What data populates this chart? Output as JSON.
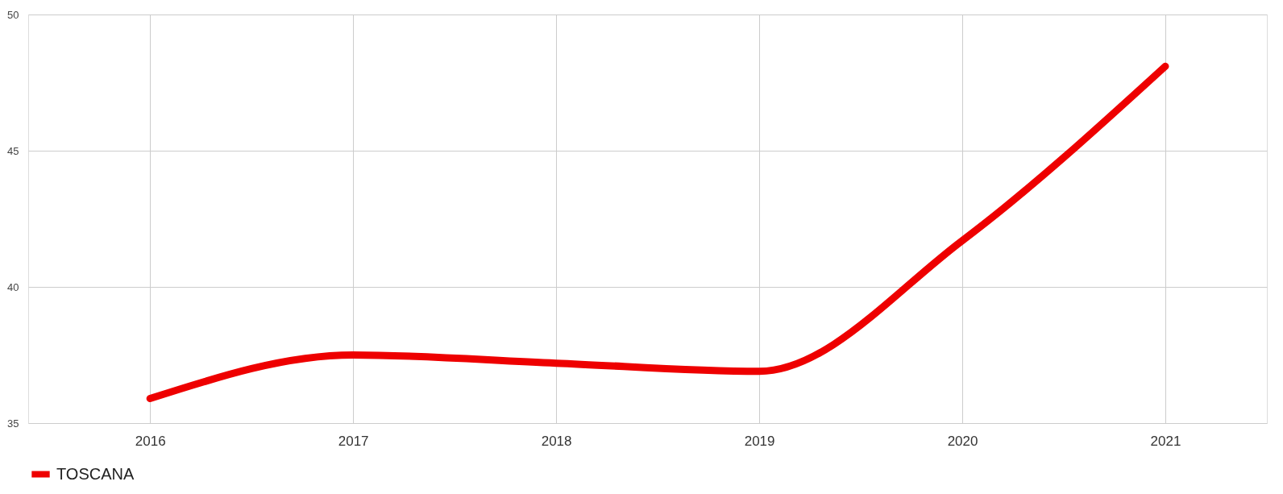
{
  "chart_data": {
    "type": "line",
    "x": [
      2016,
      2017,
      2018,
      2019,
      2020,
      2021
    ],
    "series": [
      {
        "name": "TOSCANA",
        "color": "#ee0000",
        "values": [
          35.9,
          37.5,
          37.2,
          36.9,
          41.7,
          48.1
        ]
      }
    ],
    "xlim": [
      2015.4,
      2021.5
    ],
    "xticks": [
      2016,
      2017,
      2018,
      2019,
      2020,
      2021
    ],
    "ylim": [
      35,
      50
    ],
    "yticks": [
      35,
      40,
      45,
      50
    ],
    "grid": true,
    "legend": "bottom",
    "marker": "none",
    "line_style": "solid"
  }
}
